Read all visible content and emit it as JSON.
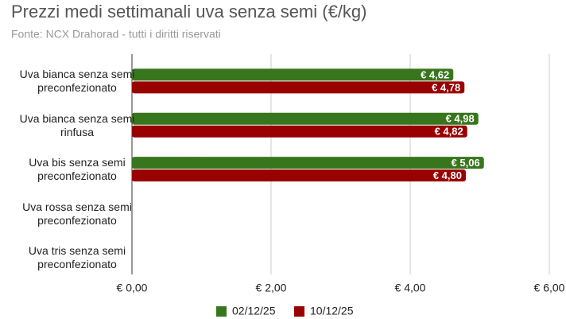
{
  "chart_data": {
    "type": "hbar",
    "title": "Prezzi medi settimanali uva senza semi (€/kg)",
    "subtitle": "Fonte: NCX Drahorad - tutti i diritti riservati",
    "categories": [
      "Uva bianca senza semi preconfezionato",
      "Uva bianca senza semi rinfusa",
      "Uva bis senza semi preconfezionato",
      "Uva rossa senza semi preconfezionato",
      "Uva tris senza semi preconfezionato"
    ],
    "series": [
      {
        "name": "02/12/25",
        "color": "#38761d",
        "values": [
          4.62,
          4.98,
          5.06,
          null,
          null
        ],
        "value_labels": [
          "€ 4,62",
          "€ 4,98",
          "€ 5,06",
          null,
          null
        ]
      },
      {
        "name": "10/12/25",
        "color": "#990000",
        "values": [
          4.78,
          4.82,
          4.8,
          null,
          null
        ],
        "value_labels": [
          "€ 4,78",
          "€ 4,82",
          "€ 4,80",
          null,
          null
        ]
      }
    ],
    "xlim": [
      0,
      6
    ],
    "xticks": [
      {
        "value": 0,
        "label": "€ 0,00"
      },
      {
        "value": 2,
        "label": "€ 2,00"
      },
      {
        "value": 4,
        "label": "€ 4,00"
      },
      {
        "value": 6,
        "label": "€ 6,00"
      }
    ],
    "grid": true
  }
}
